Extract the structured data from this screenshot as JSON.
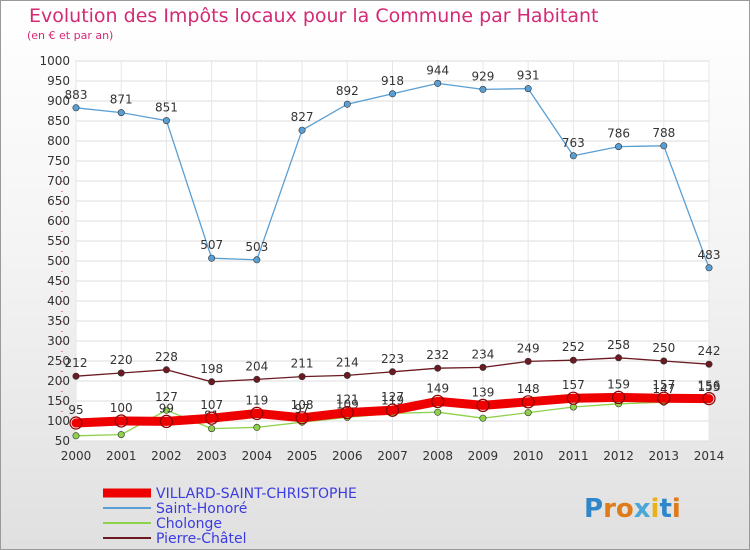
{
  "title": "Evolution des Impôts locaux pour la Commune par Habitant",
  "subtitle": "(en € et par an)",
  "logo": "Proxiti",
  "colors": {
    "title": "#d42a74",
    "legend_text": "#3b3be0"
  },
  "chart_data": {
    "type": "line",
    "x": [
      2000,
      2001,
      2002,
      2003,
      2004,
      2005,
      2006,
      2007,
      2008,
      2009,
      2010,
      2011,
      2012,
      2013,
      2014
    ],
    "ylim": [
      50,
      1000
    ],
    "yticks": [
      50,
      100,
      150,
      200,
      250,
      300,
      350,
      400,
      450,
      500,
      550,
      600,
      650,
      700,
      750,
      800,
      850,
      900,
      950,
      1000
    ],
    "grid": true,
    "legend_position": "bottom-left",
    "series": [
      {
        "name": "Saint-Honoré",
        "color": "#5a9fd4",
        "values": [
          883,
          871,
          851,
          507,
          503,
          827,
          892,
          918,
          944,
          929,
          931,
          763,
          786,
          788,
          483
        ],
        "labels": [
          "883",
          "871",
          "851",
          "507",
          "503",
          "827",
          "892",
          "918",
          "944",
          "929",
          "931",
          "763",
          "786",
          "788",
          "483"
        ]
      },
      {
        "name": "Pierre-Châtel",
        "color": "#6b1a22",
        "values": [
          212,
          220,
          228,
          198,
          204,
          211,
          214,
          223,
          232,
          234,
          249,
          252,
          258,
          250,
          242
        ],
        "labels": [
          "212",
          "220",
          "228",
          "198",
          "204",
          "211",
          "214",
          "223",
          "232",
          "234",
          "249",
          "252",
          "258",
          "250",
          "242"
        ]
      },
      {
        "name": "Cholonge",
        "color": "#8ed14a",
        "values": [
          63,
          66,
          127,
          81,
          84,
          97,
          109,
          119,
          122,
          107,
          121,
          135,
          143,
          147,
          153
        ],
        "labels": [
          "",
          "",
          "127",
          "81",
          "",
          "97",
          "109",
          "119",
          "",
          "",
          "",
          "",
          "",
          "147",
          "153"
        ]
      },
      {
        "name": "VILLARD-SAINT-CHRISTOPHE",
        "color": "#ee0000",
        "values": [
          95,
          100,
          99,
          107,
          119,
          108,
          121,
          127,
          149,
          139,
          148,
          157,
          159,
          157,
          156
        ],
        "labels": [
          "95",
          "100",
          "99",
          "107",
          "119",
          "108",
          "121",
          "127",
          "149",
          "139",
          "148",
          "157",
          "159",
          "157",
          "156"
        ]
      }
    ]
  }
}
